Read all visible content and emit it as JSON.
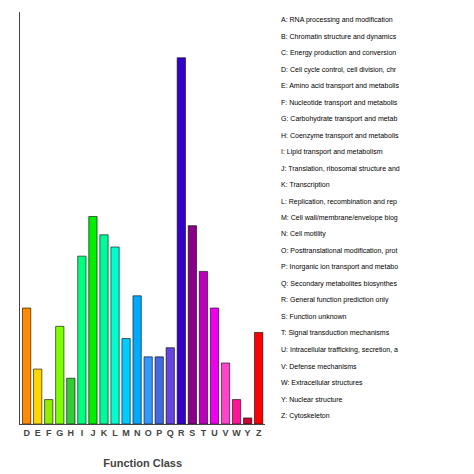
{
  "chart_data": {
    "type": "bar",
    "categories": [
      "D",
      "E",
      "F",
      "G",
      "H",
      "I",
      "J",
      "K",
      "L",
      "M",
      "N",
      "O",
      "P",
      "Q",
      "R",
      "S",
      "T",
      "U",
      "V",
      "W",
      "Y",
      "Z"
    ],
    "values": [
      38,
      18,
      8,
      32,
      15,
      55,
      68,
      62,
      58,
      28,
      42,
      22,
      22,
      25,
      120,
      65,
      50,
      38,
      20,
      8,
      2,
      30
    ],
    "colors": [
      "#FF8C00",
      "#FFD700",
      "#90EE00",
      "#7FFF00",
      "#32CD32",
      "#00FF7F",
      "#00EE00",
      "#00FA9A",
      "#00FFCC",
      "#00CCFF",
      "#00AAFF",
      "#3399FF",
      "#4169E1",
      "#6644DD",
      "#3300CC",
      "#880088",
      "#BB00BB",
      "#EE00EE",
      "#FF44CC",
      "#FF1493",
      "#CC0033",
      "#FF0000"
    ],
    "xlabel": "Function Class",
    "ylim": [
      0,
      135
    ],
    "tick_labels": "x",
    "grid": false,
    "annotations": [
      "A: RNA processing and modification",
      "B: Chromatin structure and dynamics",
      "C: Energy production and conversion",
      "D: Cell cycle control, cell division, chr",
      "E: Amino acid transport and metabolis",
      "F: Nucleotide transport and metabolis",
      "G: Carbohydrate transport and metab",
      "H: Coenzyme transport and metabolis",
      "I: Lipid transport and metabolism",
      "J: Translation, ribosomal structure and",
      "K: Transcription",
      "L: Replication, recombination and rep",
      "M: Cell wall/membrane/envelope biog",
      "N: Cell motility",
      "O: Posttranslational modification, prot",
      "P: Inorganic ion transport and metabo",
      "Q: Secondary metabolites biosynthes",
      "R: General function prediction only",
      "S: Function unknown",
      "T: Signal transduction mechanisms",
      "U: Intracellular trafficking, secretion, a",
      "V: Defense mechanisms",
      "W: Extracellular structures",
      "Y: Nuclear structure",
      "Z: Cytoskeleton"
    ]
  }
}
